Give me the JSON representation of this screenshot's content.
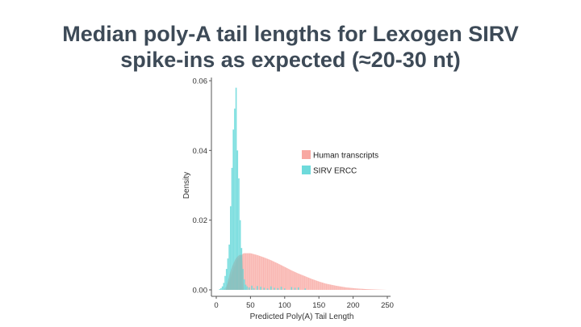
{
  "slide": {
    "title_line1": "Median poly-A tail lengths for Lexogen SIRV",
    "title_line2": "spike-ins as expected (≈20-30 nt)"
  },
  "chart_data": {
    "type": "area",
    "title": "",
    "xlabel": "Predicted Poly(A) Tail Length",
    "ylabel": "Density",
    "xlim": [
      0,
      250
    ],
    "ylim": [
      0,
      0.06
    ],
    "xticks": [
      0,
      50,
      100,
      150,
      200,
      250
    ],
    "yticks": [
      0.0,
      0.02,
      0.04,
      0.06
    ],
    "xtick_labels": [
      "0",
      "50",
      "100",
      "150",
      "200",
      "250"
    ],
    "ytick_labels": [
      "0.00",
      "0.02",
      "0.04",
      "0.06"
    ],
    "grid": false,
    "legend_position": "upper-right",
    "series": [
      {
        "name": "Human transcripts",
        "color": "#f8a8a2",
        "x": [
          10,
          15,
          20,
          25,
          30,
          35,
          40,
          50,
          60,
          70,
          80,
          90,
          100,
          110,
          120,
          130,
          140,
          150,
          160,
          175,
          190,
          205,
          220,
          235,
          250
        ],
        "values": [
          0.0,
          0.001,
          0.003,
          0.006,
          0.0085,
          0.0098,
          0.0105,
          0.0105,
          0.01,
          0.0093,
          0.0085,
          0.0076,
          0.0066,
          0.0056,
          0.0047,
          0.0039,
          0.0031,
          0.0024,
          0.0018,
          0.0012,
          0.0007,
          0.0004,
          0.0002,
          0.0001,
          0.0
        ]
      },
      {
        "name": "SIRV ERCC",
        "color": "#6edadb",
        "x": [
          5,
          7,
          9,
          11,
          13,
          15,
          17,
          19,
          21,
          23,
          25,
          27,
          29,
          31,
          33,
          35,
          37,
          39,
          41,
          43,
          45,
          48,
          52,
          55,
          60,
          65,
          70,
          75,
          80,
          85,
          90,
          95,
          100,
          110,
          115,
          120,
          130
        ],
        "values": [
          0.0002,
          0.0005,
          0.001,
          0.002,
          0.004,
          0.006,
          0.009,
          0.013,
          0.024,
          0.035,
          0.046,
          0.052,
          0.058,
          0.04,
          0.032,
          0.02,
          0.012,
          0.006,
          0.003,
          0.0015,
          0.001,
          0.0007,
          0.0012,
          0.0005,
          0.0011,
          0.0009,
          0.0006,
          0.0004,
          0.001,
          0.0006,
          0.0005,
          0.0009,
          0.0004,
          0.0008,
          0.0006,
          0.0007,
          0.0004
        ]
      }
    ]
  }
}
